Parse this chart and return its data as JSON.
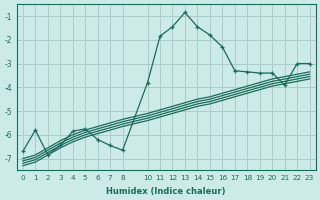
{
  "xlabel": "Humidex (Indice chaleur)",
  "bg_color": "#cceae7",
  "grid_color": "#aaccca",
  "line_color": "#1a6b5e",
  "xlim": [
    -0.5,
    23.5
  ],
  "ylim": [
    -7.5,
    -0.5
  ],
  "xticks": [
    0,
    1,
    2,
    3,
    4,
    5,
    6,
    7,
    8,
    10,
    11,
    12,
    13,
    14,
    15,
    16,
    17,
    18,
    19,
    20,
    21,
    22,
    23
  ],
  "yticks": [
    -7,
    -6,
    -5,
    -4,
    -3,
    -2,
    -1
  ],
  "lines": [
    {
      "x": [
        0,
        1,
        2,
        3,
        4,
        5,
        6,
        7,
        8,
        10,
        11,
        12,
        13,
        14,
        15,
        16,
        17,
        18,
        19,
        20,
        21,
        22,
        23
      ],
      "y": [
        -6.7,
        -5.8,
        -6.85,
        -6.45,
        -5.85,
        -5.75,
        -6.2,
        -6.45,
        -6.65,
        -3.8,
        -1.85,
        -1.45,
        -0.85,
        -1.45,
        -1.8,
        -2.3,
        -3.3,
        -3.35,
        -3.4,
        -3.4,
        -3.9,
        -3.0,
        -3.0
      ],
      "marker": true
    },
    {
      "x": [
        0,
        1,
        2,
        3,
        4,
        5,
        6,
        7,
        8,
        10,
        11,
        12,
        13,
        14,
        15,
        16,
        17,
        18,
        19,
        20,
        21,
        22,
        23
      ],
      "y": [
        -7.0,
        -6.85,
        -6.55,
        -6.25,
        -6.0,
        -5.8,
        -5.65,
        -5.5,
        -5.35,
        -5.1,
        -4.95,
        -4.8,
        -4.65,
        -4.5,
        -4.4,
        -4.25,
        -4.1,
        -3.95,
        -3.8,
        -3.65,
        -3.55,
        -3.45,
        -3.35
      ],
      "marker": false
    },
    {
      "x": [
        0,
        1,
        2,
        3,
        4,
        5,
        6,
        7,
        8,
        10,
        11,
        12,
        13,
        14,
        15,
        16,
        17,
        18,
        19,
        20,
        21,
        22,
        23
      ],
      "y": [
        -7.1,
        -6.95,
        -6.65,
        -6.35,
        -6.1,
        -5.9,
        -5.75,
        -5.6,
        -5.45,
        -5.2,
        -5.05,
        -4.9,
        -4.75,
        -4.6,
        -4.5,
        -4.35,
        -4.2,
        -4.05,
        -3.9,
        -3.75,
        -3.65,
        -3.55,
        -3.45
      ],
      "marker": false
    },
    {
      "x": [
        0,
        1,
        2,
        3,
        4,
        5,
        6,
        7,
        8,
        10,
        11,
        12,
        13,
        14,
        15,
        16,
        17,
        18,
        19,
        20,
        21,
        22,
        23
      ],
      "y": [
        -7.2,
        -7.05,
        -6.75,
        -6.45,
        -6.2,
        -6.0,
        -5.85,
        -5.7,
        -5.55,
        -5.3,
        -5.15,
        -5.0,
        -4.85,
        -4.7,
        -4.6,
        -4.45,
        -4.3,
        -4.15,
        -4.0,
        -3.85,
        -3.75,
        -3.65,
        -3.55
      ],
      "marker": false
    },
    {
      "x": [
        0,
        1,
        2,
        3,
        4,
        5,
        6,
        7,
        8,
        10,
        11,
        12,
        13,
        14,
        15,
        16,
        17,
        18,
        19,
        20,
        21,
        22,
        23
      ],
      "y": [
        -7.3,
        -7.15,
        -6.85,
        -6.55,
        -6.3,
        -6.1,
        -5.95,
        -5.8,
        -5.65,
        -5.4,
        -5.25,
        -5.1,
        -4.95,
        -4.8,
        -4.7,
        -4.55,
        -4.4,
        -4.25,
        -4.1,
        -3.95,
        -3.85,
        -3.75,
        -3.65
      ],
      "marker": false
    }
  ]
}
